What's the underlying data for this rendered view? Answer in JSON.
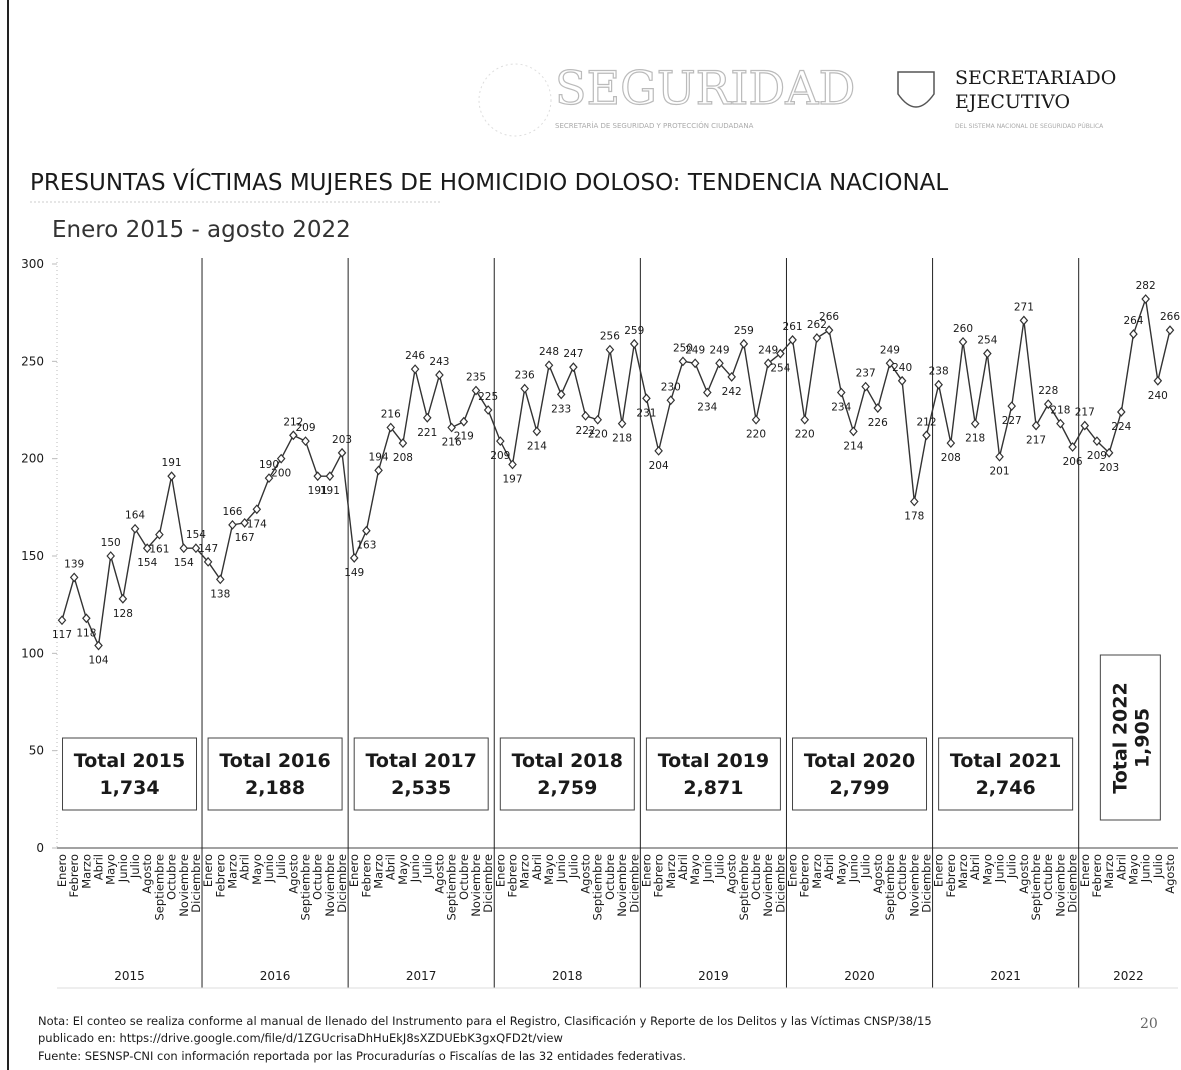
{
  "header": {
    "logo_main": "SEGURIDAD",
    "logo_main_sub": "SECRETARÍA DE SEGURIDAD Y PROTECCIÓN CIUDADANA",
    "logo_right": "SECRETARIADO",
    "logo_right_2": "EJECUTIVO",
    "logo_right_sub": "DEL SISTEMA NACIONAL DE SEGURIDAD PÚBLICA"
  },
  "chart_data": {
    "type": "line",
    "title": "PRESUNTAS VÍCTIMAS MUJERES DE HOMICIDIO DOLOSO: TENDENCIA NACIONAL",
    "subtitle": "Enero 2015 - agosto 2022",
    "categories": [
      "Enero",
      "Febrero",
      "Marzo",
      "Abril",
      "Mayo",
      "Junio",
      "Julio",
      "Agosto",
      "Septiembre",
      "Octubre",
      "Noviembre",
      "Diciembre",
      "Enero",
      "Febrero",
      "Marzo",
      "Abril",
      "Mayo",
      "Junio",
      "Julio",
      "Agosto",
      "Septiembre",
      "Octubre",
      "Noviembre",
      "Diciembre",
      "Enero",
      "Febrero",
      "Marzo",
      "Abril",
      "Mayo",
      "Junio",
      "Julio",
      "Agosto",
      "Septiembre",
      "Octubre",
      "Noviembre",
      "Diciembre",
      "Enero",
      "Febrero",
      "Marzo",
      "Abril",
      "Mayo",
      "Junio",
      "Julio",
      "Agosto",
      "Septiembre",
      "Octubre",
      "Noviembre",
      "Diciembre",
      "Enero",
      "Febrero",
      "Marzo",
      "Abril",
      "Mayo",
      "Junio",
      "Julio",
      "Agosto",
      "Septiembre",
      "Octubre",
      "Noviembre",
      "Diciembre",
      "Enero",
      "Febrero",
      "Marzo",
      "Abril",
      "Mayo",
      "Junio",
      "Julio",
      "Agosto",
      "Septiembre",
      "Octubre",
      "Noviembre",
      "Diciembre",
      "Enero",
      "Febrero",
      "Marzo",
      "Abril",
      "Mayo",
      "Junio",
      "Julio",
      "Agosto",
      "Septiembre",
      "Octubre",
      "Noviembre",
      "Diciembre",
      "Enero",
      "Febrero",
      "Marzo",
      "Abril",
      "Mayo",
      "Junio",
      "Julio",
      "Agosto"
    ],
    "years": [
      "2015",
      "2016",
      "2017",
      "2018",
      "2019",
      "2020",
      "2021",
      "2022"
    ],
    "values": [
      117,
      139,
      118,
      104,
      150,
      128,
      164,
      154,
      161,
      191,
      154,
      154,
      147,
      138,
      166,
      167,
      174,
      190,
      200,
      212,
      209,
      191,
      191,
      203,
      149,
      163,
      194,
      216,
      208,
      246,
      221,
      243,
      216,
      219,
      235,
      225,
      209,
      197,
      236,
      214,
      248,
      233,
      247,
      222,
      220,
      256,
      218,
      259,
      231,
      204,
      230,
      250,
      249,
      234,
      249,
      242,
      259,
      220,
      249,
      254,
      261,
      220,
      262,
      266,
      234,
      214,
      237,
      226,
      249,
      240,
      178,
      212,
      238,
      208,
      260,
      218,
      254,
      201,
      227,
      271,
      217,
      228,
      218,
      206,
      217,
      209,
      203,
      224,
      264,
      282,
      240,
      266
    ],
    "color": "#333333",
    "ylim": [
      0,
      300
    ],
    "yticks": [
      0,
      50,
      100,
      150,
      200,
      250,
      300
    ],
    "totals": [
      {
        "title": "Total 2015",
        "total": "1,734"
      },
      {
        "title": "Total 2016",
        "total": "2,188"
      },
      {
        "title": "Total 2017",
        "total": "2,535"
      },
      {
        "title": "Total 2018",
        "total": "2,759"
      },
      {
        "title": "Total 2019",
        "total": "2,871"
      },
      {
        "title": "Total 2020",
        "total": "2,799"
      },
      {
        "title": "Total 2021",
        "total": "2,746"
      },
      {
        "title": "Total 2022",
        "total": "1,905"
      }
    ]
  },
  "footer": {
    "note": "Nota: El conteo se realiza conforme al manual de llenado del Instrumento para el Registro, Clasificación y Reporte de los Delitos y las Víctimas CNSP/38/15",
    "note_2": "publicado en: https://drive.google.com/file/d/1ZGUcrisaDhHuEkJ8sXZDUEbK3gxQFD2t/view",
    "source": "Fuente: SESNSP-CNI con información reportada por las Procuradurías o Fiscalías de las 32 entidades federativas.",
    "page": "20"
  }
}
